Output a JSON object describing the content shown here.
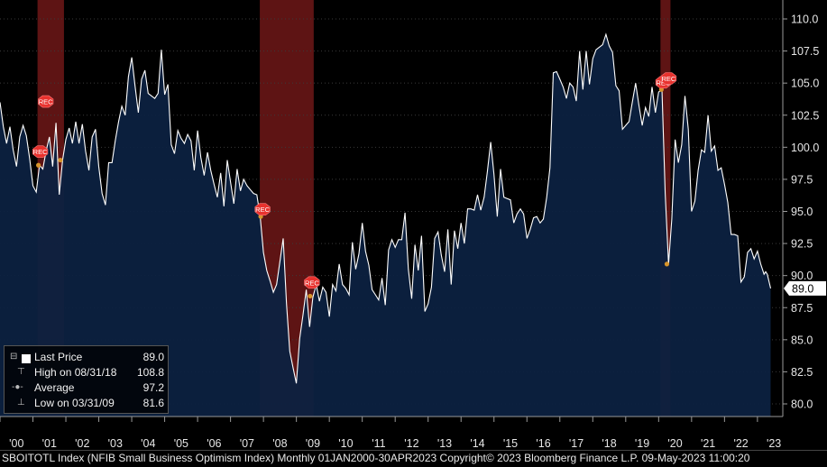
{
  "chart_data": {
    "type": "area",
    "x_range": [
      "2000-01",
      "2023-04"
    ],
    "ylim": [
      79.0,
      111.0
    ],
    "y_ticks": [
      "110.0",
      "107.5",
      "105.0",
      "102.5",
      "100.0",
      "97.5",
      "95.0",
      "92.5",
      "90.0",
      "87.5",
      "85.0",
      "82.5",
      "80.0"
    ],
    "x_tick_labels": [
      "'00",
      "'01",
      "'02",
      "'03",
      "'04",
      "'05",
      "'06",
      "'07",
      "'08",
      "'09",
      "'10",
      "'11",
      "'12",
      "'13",
      "'14",
      "'15",
      "'16",
      "'17",
      "'18",
      "'19",
      "'20",
      "'21",
      "'22",
      "'23"
    ],
    "last_price_label": "89.0",
    "recessions": [
      {
        "start": "2001-03",
        "end": "2001-11"
      },
      {
        "start": "2007-12",
        "end": "2009-06"
      },
      {
        "start": "2020-02",
        "end": "2020-04"
      }
    ],
    "rec_markers": [
      {
        "date": "2001-03",
        "value": 99.1
      },
      {
        "date": "2001-05",
        "value": 103.0
      },
      {
        "date": "2007-12",
        "value": 94.6
      },
      {
        "date": "2009-06",
        "value": 88.9
      },
      {
        "date": "2020-02",
        "value": 104.5
      },
      {
        "date": "2020-04",
        "value": 104.8
      }
    ],
    "rec_label": "REC",
    "event_points": [
      {
        "date": "2001-03",
        "value": 98.6
      },
      {
        "date": "2001-11",
        "value": 99.0
      },
      {
        "date": "2007-12",
        "value": 94.6
      },
      {
        "date": "2009-06",
        "value": 88.4
      },
      {
        "date": "2020-02",
        "value": 104.5
      },
      {
        "date": "2020-04",
        "value": 90.9
      }
    ],
    "series": [
      {
        "values": [
          [
            2000.0,
            103.5
          ],
          [
            2000.1,
            101.6
          ],
          [
            2000.2,
            100.3
          ],
          [
            2000.3,
            101.6
          ],
          [
            2000.4,
            99.8
          ],
          [
            2000.5,
            98.5
          ],
          [
            2000.6,
            100.8
          ],
          [
            2000.7,
            101.7
          ],
          [
            2000.8,
            100.9
          ],
          [
            2000.9,
            99.1
          ],
          [
            2001.0,
            97.0
          ],
          [
            2001.1,
            96.5
          ],
          [
            2001.2,
            98.6
          ],
          [
            2001.3,
            98.3
          ],
          [
            2001.4,
            99.7
          ],
          [
            2001.5,
            100.8
          ],
          [
            2001.6,
            98.5
          ],
          [
            2001.7,
            101.9
          ],
          [
            2001.8,
            96.3
          ],
          [
            2001.9,
            99.0
          ],
          [
            2002.0,
            100.6
          ],
          [
            2002.1,
            101.5
          ],
          [
            2002.2,
            100.3
          ],
          [
            2002.3,
            102.0
          ],
          [
            2002.4,
            100.3
          ],
          [
            2002.5,
            101.8
          ],
          [
            2002.6,
            99.7
          ],
          [
            2002.7,
            98.2
          ],
          [
            2002.8,
            100.8
          ],
          [
            2002.9,
            101.4
          ],
          [
            2003.0,
            98.5
          ],
          [
            2003.1,
            96.4
          ],
          [
            2003.2,
            95.5
          ],
          [
            2003.3,
            98.8
          ],
          [
            2003.4,
            98.8
          ],
          [
            2003.5,
            100.5
          ],
          [
            2003.6,
            102.0
          ],
          [
            2003.7,
            103.2
          ],
          [
            2003.8,
            102.5
          ],
          [
            2003.9,
            105.5
          ],
          [
            2004.0,
            107.0
          ],
          [
            2004.1,
            104.8
          ],
          [
            2004.2,
            102.7
          ],
          [
            2004.3,
            105.3
          ],
          [
            2004.4,
            106.0
          ],
          [
            2004.5,
            104.2
          ],
          [
            2004.6,
            104.0
          ],
          [
            2004.7,
            103.8
          ],
          [
            2004.8,
            104.2
          ],
          [
            2004.9,
            107.6
          ],
          [
            2005.0,
            104.1
          ],
          [
            2005.1,
            104.9
          ],
          [
            2005.2,
            100.2
          ],
          [
            2005.3,
            99.5
          ],
          [
            2005.4,
            101.3
          ],
          [
            2005.5,
            100.7
          ],
          [
            2005.6,
            100.3
          ],
          [
            2005.7,
            101.0
          ],
          [
            2005.8,
            100.5
          ],
          [
            2005.9,
            98.2
          ],
          [
            2006.0,
            101.3
          ],
          [
            2006.1,
            99.2
          ],
          [
            2006.2,
            97.8
          ],
          [
            2006.3,
            99.6
          ],
          [
            2006.4,
            98.2
          ],
          [
            2006.5,
            97.1
          ],
          [
            2006.6,
            96.1
          ],
          [
            2006.7,
            98.0
          ],
          [
            2006.8,
            95.4
          ],
          [
            2006.9,
            99.0
          ],
          [
            2007.0,
            97.3
          ],
          [
            2007.1,
            95.6
          ],
          [
            2007.2,
            98.3
          ],
          [
            2007.3,
            96.6
          ],
          [
            2007.4,
            97.5
          ],
          [
            2007.5,
            97.0
          ],
          [
            2007.6,
            96.7
          ],
          [
            2007.7,
            96.4
          ],
          [
            2007.8,
            96.3
          ],
          [
            2007.9,
            94.6
          ],
          [
            2008.0,
            91.8
          ],
          [
            2008.1,
            90.4
          ],
          [
            2008.2,
            89.6
          ],
          [
            2008.3,
            88.7
          ],
          [
            2008.4,
            89.3
          ],
          [
            2008.5,
            91.1
          ],
          [
            2008.6,
            92.9
          ],
          [
            2008.7,
            87.8
          ],
          [
            2008.8,
            84.1
          ],
          [
            2008.9,
            82.8
          ],
          [
            2009.0,
            81.6
          ],
          [
            2009.1,
            85.1
          ],
          [
            2009.2,
            86.9
          ],
          [
            2009.3,
            88.9
          ],
          [
            2009.4,
            86.0
          ],
          [
            2009.5,
            88.3
          ],
          [
            2009.6,
            89.3
          ],
          [
            2009.7,
            88.0
          ],
          [
            2009.8,
            89.1
          ],
          [
            2009.9,
            88.7
          ],
          [
            2010.0,
            86.8
          ],
          [
            2010.1,
            89.3
          ],
          [
            2010.2,
            88.8
          ],
          [
            2010.3,
            90.9
          ],
          [
            2010.4,
            89.3
          ],
          [
            2010.5,
            89.0
          ],
          [
            2010.6,
            88.5
          ],
          [
            2010.7,
            92.6
          ],
          [
            2010.8,
            90.5
          ],
          [
            2010.9,
            91.7
          ],
          [
            2011.0,
            94.1
          ],
          [
            2011.1,
            91.9
          ],
          [
            2011.2,
            90.8
          ],
          [
            2011.3,
            88.9
          ],
          [
            2011.4,
            88.5
          ],
          [
            2011.5,
            88.1
          ],
          [
            2011.6,
            89.8
          ],
          [
            2011.7,
            87.7
          ],
          [
            2011.8,
            92.0
          ],
          [
            2011.9,
            92.8
          ],
          [
            2012.0,
            92.2
          ],
          [
            2012.1,
            92.8
          ],
          [
            2012.2,
            92.8
          ],
          [
            2012.3,
            94.9
          ],
          [
            2012.4,
            90.5
          ],
          [
            2012.5,
            88.2
          ],
          [
            2012.6,
            92.4
          ],
          [
            2012.7,
            90.4
          ],
          [
            2012.8,
            93.1
          ],
          [
            2012.9,
            87.2
          ],
          [
            2013.0,
            87.8
          ],
          [
            2013.1,
            89.1
          ],
          [
            2013.2,
            92.9
          ],
          [
            2013.3,
            93.4
          ],
          [
            2013.4,
            91.6
          ],
          [
            2013.5,
            90.3
          ],
          [
            2013.6,
            93.6
          ],
          [
            2013.7,
            89.3
          ],
          [
            2013.8,
            93.5
          ],
          [
            2013.9,
            92.1
          ],
          [
            2014.0,
            94.1
          ],
          [
            2014.1,
            92.5
          ],
          [
            2014.2,
            95.2
          ],
          [
            2014.3,
            95.2
          ],
          [
            2014.4,
            95.1
          ],
          [
            2014.5,
            96.3
          ],
          [
            2014.6,
            95.1
          ],
          [
            2014.7,
            96.1
          ],
          [
            2014.8,
            98.1
          ],
          [
            2014.9,
            100.4
          ],
          [
            2015.0,
            97.9
          ],
          [
            2015.1,
            94.6
          ],
          [
            2015.2,
            98.3
          ],
          [
            2015.3,
            96.1
          ],
          [
            2015.4,
            96.0
          ],
          [
            2015.5,
            95.9
          ],
          [
            2015.6,
            94.1
          ],
          [
            2015.7,
            94.8
          ],
          [
            2015.8,
            95.2
          ],
          [
            2015.9,
            94.8
          ],
          [
            2016.0,
            92.9
          ],
          [
            2016.1,
            93.6
          ],
          [
            2016.2,
            94.5
          ],
          [
            2016.3,
            94.6
          ],
          [
            2016.4,
            94.1
          ],
          [
            2016.5,
            94.4
          ],
          [
            2016.6,
            96.1
          ],
          [
            2016.7,
            98.4
          ],
          [
            2016.8,
            105.8
          ],
          [
            2016.9,
            105.9
          ],
          [
            2017.0,
            105.3
          ],
          [
            2017.1,
            104.7
          ],
          [
            2017.2,
            103.8
          ],
          [
            2017.3,
            105.0
          ],
          [
            2017.4,
            104.7
          ],
          [
            2017.5,
            103.6
          ],
          [
            2017.6,
            107.5
          ],
          [
            2017.7,
            104.5
          ],
          [
            2017.8,
            107.5
          ],
          [
            2017.9,
            104.9
          ],
          [
            2018.0,
            106.9
          ],
          [
            2018.1,
            107.6
          ],
          [
            2018.2,
            107.8
          ],
          [
            2018.3,
            108.0
          ],
          [
            2018.4,
            108.8
          ],
          [
            2018.5,
            107.9
          ],
          [
            2018.6,
            107.4
          ],
          [
            2018.7,
            104.8
          ],
          [
            2018.8,
            104.4
          ],
          [
            2018.9,
            101.4
          ],
          [
            2019.0,
            101.7
          ],
          [
            2019.1,
            102.0
          ],
          [
            2019.2,
            103.5
          ],
          [
            2019.3,
            105.0
          ],
          [
            2019.4,
            103.3
          ],
          [
            2019.5,
            101.7
          ],
          [
            2019.6,
            103.1
          ],
          [
            2019.7,
            102.4
          ],
          [
            2019.8,
            104.7
          ],
          [
            2019.9,
            102.7
          ],
          [
            2020.0,
            104.3
          ],
          [
            2020.1,
            104.5
          ],
          [
            2020.2,
            96.4
          ],
          [
            2020.3,
            90.9
          ],
          [
            2020.4,
            94.4
          ],
          [
            2020.5,
            100.6
          ],
          [
            2020.6,
            98.8
          ],
          [
            2020.7,
            100.2
          ],
          [
            2020.8,
            104.0
          ],
          [
            2020.9,
            101.4
          ],
          [
            2021.0,
            95.0
          ],
          [
            2021.1,
            95.8
          ],
          [
            2021.2,
            98.2
          ],
          [
            2021.3,
            99.8
          ],
          [
            2021.4,
            99.6
          ],
          [
            2021.5,
            102.5
          ],
          [
            2021.6,
            99.7
          ],
          [
            2021.7,
            100.1
          ],
          [
            2021.8,
            98.2
          ],
          [
            2021.9,
            98.4
          ],
          [
            2022.0,
            97.1
          ],
          [
            2022.1,
            95.7
          ],
          [
            2022.2,
            93.2
          ],
          [
            2022.3,
            93.2
          ],
          [
            2022.4,
            93.1
          ],
          [
            2022.5,
            89.5
          ],
          [
            2022.6,
            89.9
          ],
          [
            2022.7,
            91.8
          ],
          [
            2022.8,
            92.1
          ],
          [
            2022.9,
            91.3
          ],
          [
            2023.0,
            91.9
          ],
          [
            2023.1,
            90.9
          ],
          [
            2023.2,
            90.1
          ],
          [
            2023.25,
            90.3
          ],
          [
            2023.3,
            90.1
          ],
          [
            2023.4,
            89.0
          ]
        ]
      }
    ]
  },
  "legend": {
    "last_price_label": "Last Price",
    "last_price_value": "89.0",
    "high_label": "High on 08/31/18",
    "high_value": "108.8",
    "avg_label": "Average",
    "avg_value": "97.2",
    "low_label": "Low on 03/31/09",
    "low_value": "81.6"
  },
  "footer": {
    "text": "SBOITOTL Index (NFIB Small Business Optimism Index)  Monthly 01JAN2000-30APR2023 Copyright© 2023 Bloomberg Finance L.P. 09-May-2023 11:00:20"
  },
  "colors": {
    "background": "#000000",
    "area_fill": "#0c2140",
    "line": "#ffffff",
    "recession_band": "#6e1818",
    "rec_marker": "#e8322e",
    "event_point": "#d7942a",
    "axis_text": "#e6e6e6"
  }
}
